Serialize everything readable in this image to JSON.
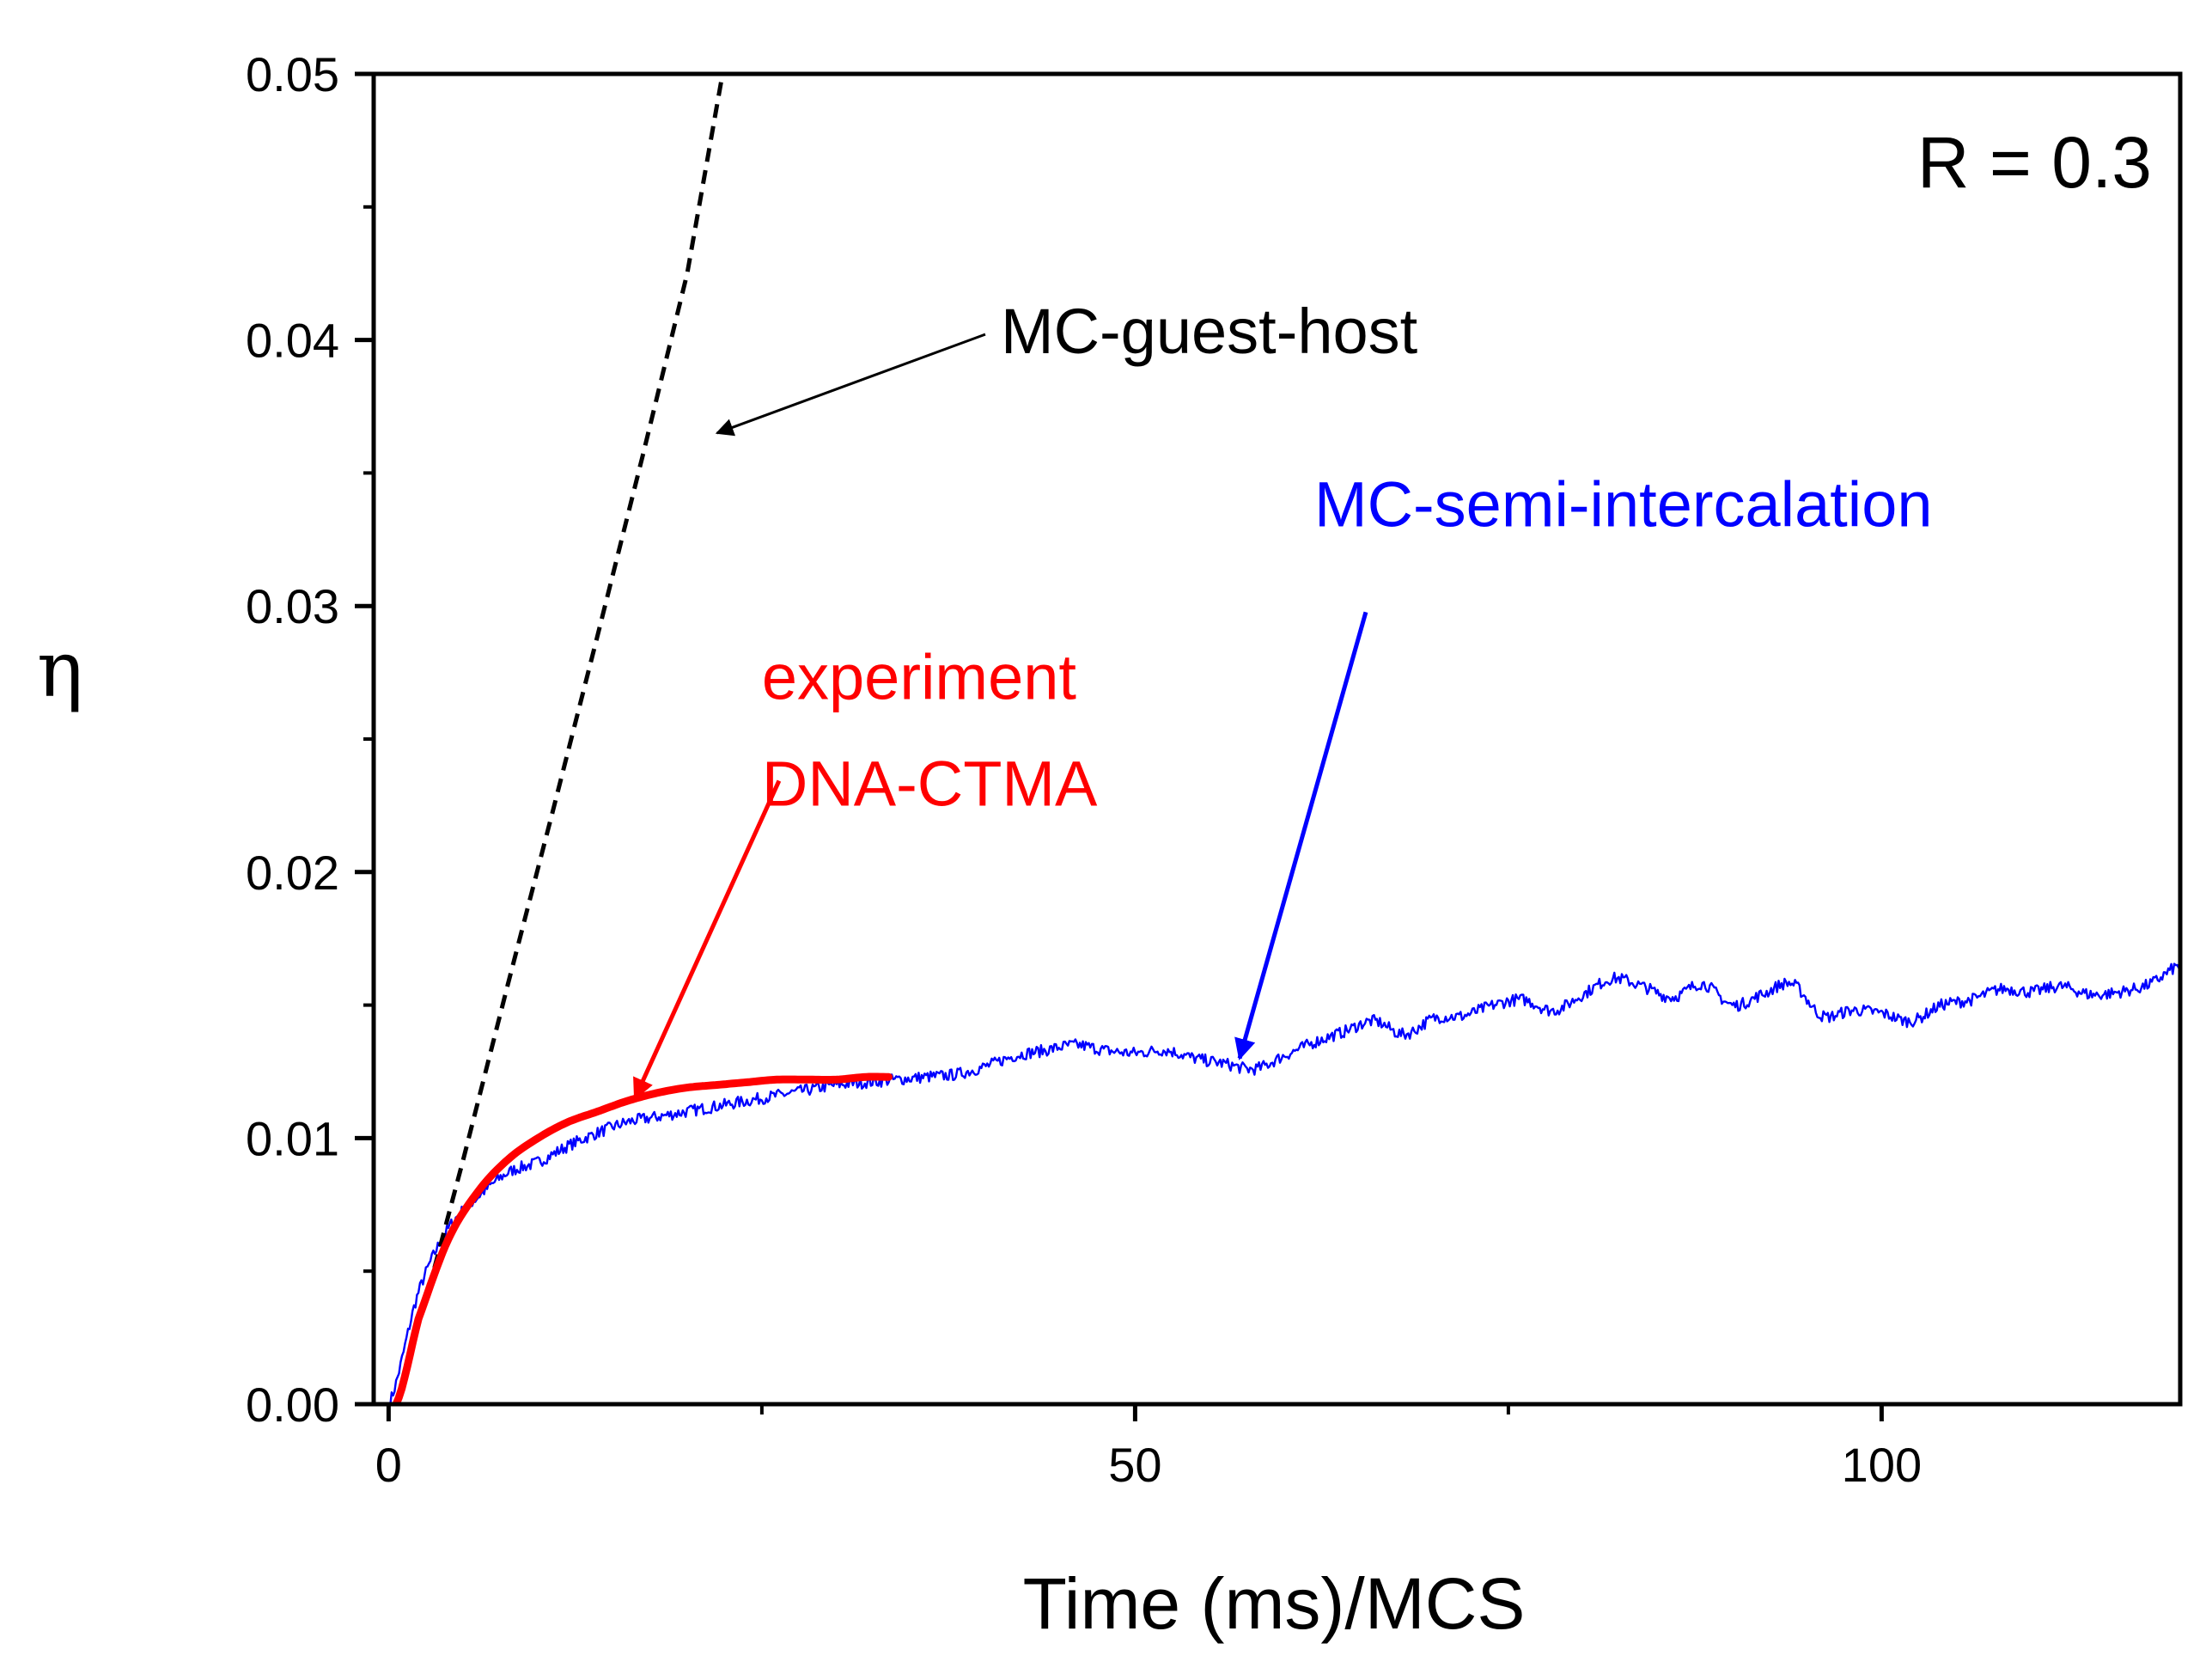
{
  "chart_data": {
    "type": "line",
    "title": "",
    "xlabel": "Time (ms)/MCS",
    "ylabel": "η",
    "xlim": [
      -1,
      120
    ],
    "ylim": [
      0,
      0.05
    ],
    "xticks": [
      0,
      50,
      100
    ],
    "xtick_labels": [
      "0",
      "50",
      "100"
    ],
    "xminor": [
      25,
      75
    ],
    "yticks": [
      0,
      0.01,
      0.02,
      0.03,
      0.04,
      0.05
    ],
    "ytick_labels": [
      "0.00",
      "0.01",
      "0.02",
      "0.03",
      "0.04",
      "0.05"
    ],
    "yminor": [
      0.005,
      0.015,
      0.025,
      0.035,
      0.045
    ],
    "grid": false,
    "panel_label": "R = 0.3",
    "series": [
      {
        "name": "MC-guest-host",
        "style": "dashed",
        "color": "#000000",
        "x": [
          2.3,
          5,
          8,
          11,
          14,
          17,
          20,
          22.3
        ],
        "y": [
          0.0035,
          0.0092,
          0.0158,
          0.0223,
          0.0289,
          0.0356,
          0.0425,
          0.0498
        ]
      },
      {
        "name": "MC-semi-intercalation",
        "style": "noisy",
        "color": "#0000ff",
        "x": [
          0,
          2,
          4,
          6,
          8,
          10,
          12,
          14,
          16,
          18,
          20,
          22,
          24,
          26,
          28,
          30,
          32,
          34,
          36,
          38,
          40,
          42,
          44,
          46,
          48,
          50,
          52,
          54,
          56,
          58,
          60,
          62,
          64,
          66,
          68,
          70,
          72,
          74,
          76,
          78,
          80,
          82,
          84,
          86,
          88,
          90,
          92,
          94,
          96,
          98,
          100,
          102,
          104,
          106,
          108,
          110,
          112,
          114,
          116,
          118,
          120
        ],
        "y": [
          0.0,
          0.0042,
          0.0066,
          0.0078,
          0.0087,
          0.0091,
          0.0097,
          0.0102,
          0.0106,
          0.0108,
          0.011,
          0.0112,
          0.0114,
          0.0116,
          0.0118,
          0.012,
          0.0121,
          0.0122,
          0.0123,
          0.0124,
          0.0127,
          0.0131,
          0.0133,
          0.0135,
          0.0133,
          0.0132,
          0.0133,
          0.013,
          0.0128,
          0.0126,
          0.0131,
          0.0136,
          0.014,
          0.0144,
          0.0139,
          0.0145,
          0.0146,
          0.015,
          0.0152,
          0.0148,
          0.0154,
          0.016,
          0.0157,
          0.0153,
          0.0158,
          0.015,
          0.0154,
          0.0158,
          0.0146,
          0.0148,
          0.0147,
          0.0144,
          0.015,
          0.0152,
          0.0156,
          0.0155,
          0.0157,
          0.0154,
          0.0155,
          0.0158,
          0.0165
        ]
      },
      {
        "name": "experiment DNA-CTMA",
        "style": "thick",
        "color": "#ff0000",
        "x": [
          0.5,
          2,
          4,
          6,
          8,
          10,
          12,
          14,
          16,
          18,
          20,
          22,
          24,
          26,
          28,
          30,
          32,
          33.5
        ],
        "y": [
          0.0,
          0.0032,
          0.0062,
          0.008,
          0.0092,
          0.01,
          0.0106,
          0.011,
          0.0114,
          0.0117,
          0.0119,
          0.012,
          0.0121,
          0.0122,
          0.0122,
          0.0122,
          0.0123,
          0.0123
        ]
      }
    ],
    "annotations": [
      {
        "text": "MC-guest-host",
        "color": "#000000",
        "at": [
          22,
          0.0365
        ],
        "text_at": [
          41,
          0.0395
        ]
      },
      {
        "text": "MC-semi-intercalation",
        "color": "#0000ff",
        "at": [
          57,
          0.013
        ],
        "text_at": [
          62,
          0.033
        ]
      },
      {
        "text": "experiment",
        "color": "#ff0000",
        "at": [
          16.5,
          0.0115
        ],
        "text_at": [
          25,
          0.0265
        ]
      },
      {
        "text": "DNA-CTMA",
        "color": "#ff0000",
        "at": [
          16.5,
          0.0115
        ],
        "text_at": [
          25,
          0.0225
        ]
      }
    ]
  }
}
